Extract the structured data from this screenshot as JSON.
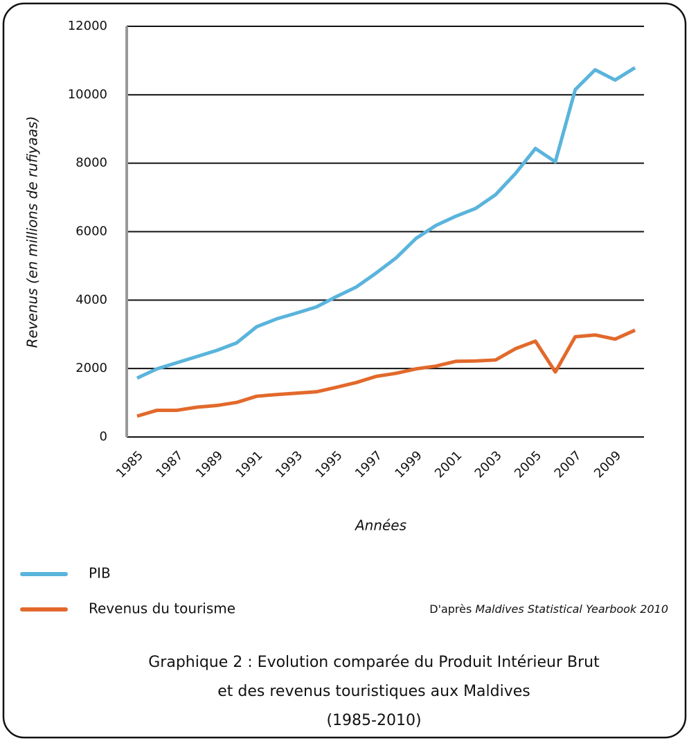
{
  "chart_data": {
    "type": "line",
    "y_label": "Revenus (en millions de rufiyaas)",
    "x_label": "Années",
    "categories": [
      "1985",
      null,
      "1987",
      null,
      "1989",
      null,
      "1991",
      null,
      "1993",
      null,
      "1995",
      null,
      "1997",
      null,
      "1999",
      null,
      "2001",
      null,
      "2003",
      null,
      "2005",
      null,
      "2007",
      null,
      "2009",
      null
    ],
    "series": [
      {
        "name": "PIB",
        "color": "#5ab4dc",
        "values": [
          1720,
          1990,
          2170,
          2350,
          2530,
          2750,
          3220,
          3450,
          3620,
          3800,
          4100,
          4380,
          4790,
          5230,
          5800,
          6180,
          6450,
          6680,
          7080,
          7700,
          8430,
          8040,
          10150,
          10730,
          10430,
          10790
        ]
      },
      {
        "name": "Revenus du tourisme",
        "color": "#e2692b",
        "values": [
          610,
          780,
          780,
          870,
          920,
          1010,
          1190,
          1240,
          1280,
          1320,
          1450,
          1590,
          1770,
          1860,
          1990,
          2070,
          2210,
          2220,
          2250,
          2580,
          2800,
          1900,
          2930,
          2980,
          2860,
          3120
        ]
      }
    ],
    "ylim": [
      0,
      12000
    ],
    "yticks": [
      0,
      2000,
      4000,
      6000,
      8000,
      10000,
      12000
    ],
    "grid": true,
    "legend": "bottom-left",
    "source": {
      "prefix": "D'après ",
      "title": "Maldives Statistical Yearbook 2010"
    },
    "caption": [
      "Graphique 2 : Evolution comparée du Produit Intérieur Brut",
      "et des revenus touristiques aux Maldives",
      "(1985-2010)"
    ]
  }
}
